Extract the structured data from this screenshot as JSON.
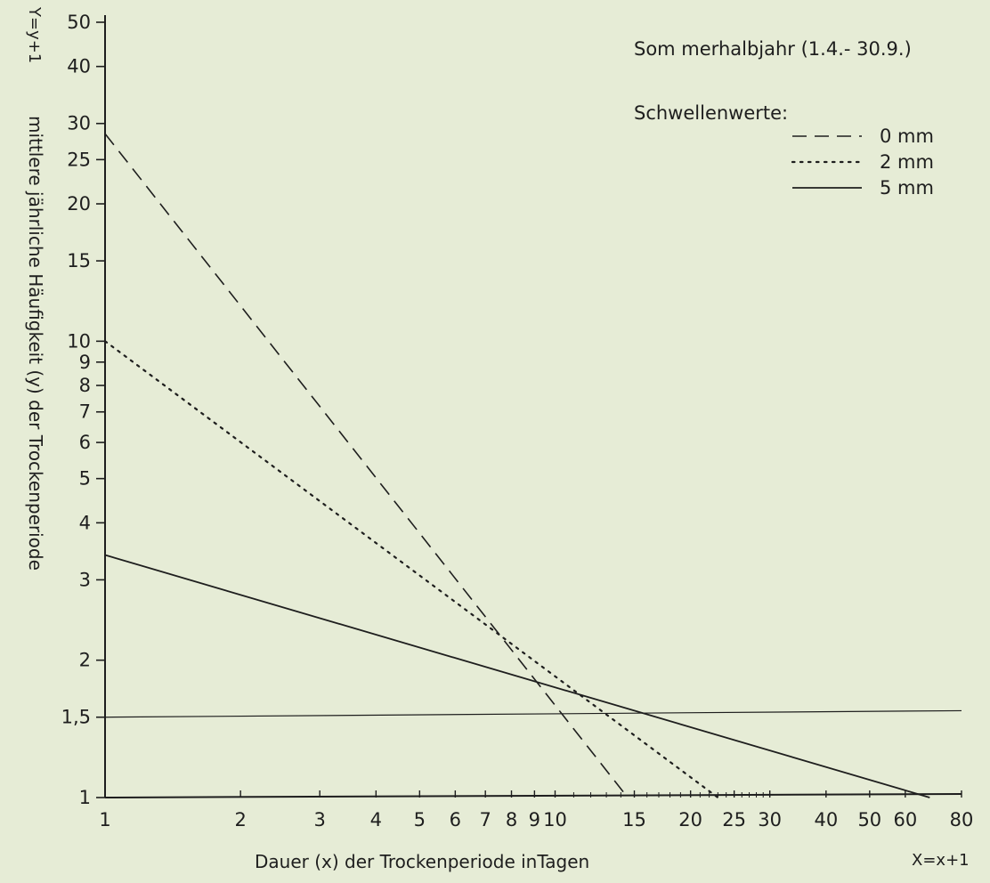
{
  "chart_data": {
    "type": "line",
    "title": "Som merhalbjahr (1.4.- 30.9.)",
    "xlabel": "Dauer (x) der Trockenperiode inTagen",
    "xlabel_right": "X=x+1",
    "ylabel": "mittlere jährliche Häufigkeit (y) der Trockenperiode",
    "ylabel_top": "Y=y+1",
    "x_scale": "log",
    "y_scale": "log",
    "xlim": [
      1,
      80
    ],
    "ylim": [
      1,
      50
    ],
    "x_ticks": [
      {
        "v": 1,
        "label": "1"
      },
      {
        "v": 2,
        "label": "2"
      },
      {
        "v": 3,
        "label": "3"
      },
      {
        "v": 4,
        "label": "4"
      },
      {
        "v": 5,
        "label": "5"
      },
      {
        "v": 6,
        "label": "6"
      },
      {
        "v": 7,
        "label": "7"
      },
      {
        "v": 8,
        "label": "8"
      },
      {
        "v": 9,
        "label": "9"
      },
      {
        "v": 10,
        "label": "10"
      },
      {
        "v": 15,
        "label": "15"
      },
      {
        "v": 20,
        "label": "20"
      },
      {
        "v": 25,
        "label": "25"
      },
      {
        "v": 30,
        "label": "30"
      },
      {
        "v": 40,
        "label": "40"
      },
      {
        "v": 50,
        "label": "50"
      },
      {
        "v": 60,
        "label": "60"
      },
      {
        "v": 80,
        "label": "80"
      }
    ],
    "x_minor": [
      11,
      12,
      13,
      14,
      16,
      17,
      18,
      19,
      21,
      22,
      23,
      24,
      26,
      27,
      28,
      29
    ],
    "y_ticks": [
      {
        "v": 1,
        "label": "1"
      },
      {
        "v": 1.5,
        "label": "1,5"
      },
      {
        "v": 2,
        "label": "2"
      },
      {
        "v": 3,
        "label": "3"
      },
      {
        "v": 4,
        "label": "4"
      },
      {
        "v": 5,
        "label": "5"
      },
      {
        "v": 6,
        "label": "6"
      },
      {
        "v": 7,
        "label": "7"
      },
      {
        "v": 8,
        "label": "8"
      },
      {
        "v": 9,
        "label": "9"
      },
      {
        "v": 10,
        "label": "10"
      },
      {
        "v": 15,
        "label": "15"
      },
      {
        "v": 20,
        "label": "20"
      },
      {
        "v": 25,
        "label": "25"
      },
      {
        "v": 30,
        "label": "30"
      },
      {
        "v": 40,
        "label": "40"
      },
      {
        "v": 50,
        "label": "50"
      }
    ],
    "legend_title": "Schwellenwerte:",
    "legend_position": "top-right",
    "series": [
      {
        "name": "0 mm",
        "style": "dashed",
        "x": [
          1,
          14.5
        ],
        "y": [
          28.5,
          1
        ]
      },
      {
        "name": "2 mm",
        "style": "dotted",
        "x": [
          1,
          23
        ],
        "y": [
          10,
          1
        ]
      },
      {
        "name": "5 mm",
        "style": "solid",
        "x": [
          1,
          68
        ],
        "y": [
          3.4,
          1
        ]
      }
    ],
    "reference_line": {
      "style": "solid-thin",
      "x": [
        1,
        80
      ],
      "y": [
        1.5,
        1.55
      ]
    },
    "colors": {
      "ink": "#1e1e1e",
      "paper": "#e6ecd6"
    }
  }
}
